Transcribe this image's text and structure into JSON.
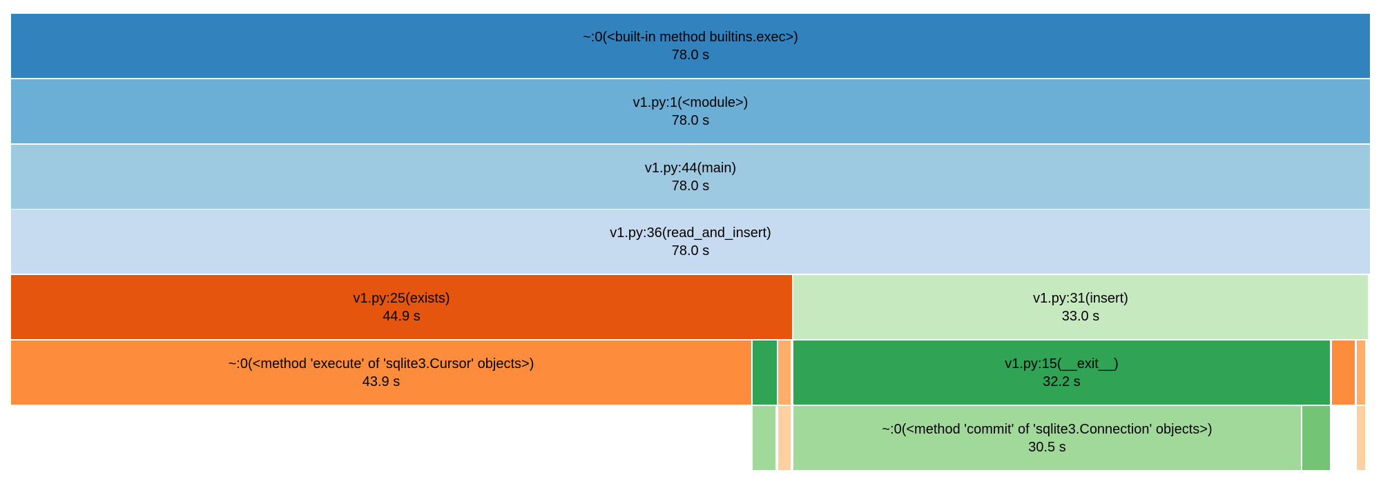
{
  "blocks": [
    {
      "name": "~:0(<built-in method builtins.exec>)",
      "time": "78.0 s",
      "color": "#3182bd"
    },
    {
      "name": "v1.py:1(<module>)",
      "time": "78.0 s",
      "color": "#6baed6"
    },
    {
      "name": "v1.py:44(main)",
      "time": "78.0 s",
      "color": "#9ecae1"
    },
    {
      "name": "v1.py:36(read_and_insert)",
      "time": "78.0 s",
      "color": "#c6dbef"
    },
    {
      "name": "v1.py:25(exists)",
      "time": "44.9 s",
      "color": "#e6550d"
    },
    {
      "name": "v1.py:31(insert)",
      "time": "33.0 s",
      "color": "#c7e9c0"
    },
    {
      "name": "~:0(<method 'execute' of 'sqlite3.Cursor' objects>)",
      "time": "43.9 s",
      "color": "#fd8d3c"
    },
    {
      "name": "",
      "time": "",
      "color": "#31a354"
    },
    {
      "name": "",
      "time": "",
      "color": "#fdae6b"
    },
    {
      "name": "v1.py:15(__exit__)",
      "time": "32.2 s",
      "color": "#31a354"
    },
    {
      "name": "",
      "time": "",
      "color": "#fd8d3c"
    },
    {
      "name": "",
      "time": "",
      "color": "#fdae6b"
    },
    {
      "name": "",
      "time": "",
      "color": "#a1d99b"
    },
    {
      "name": "",
      "time": "",
      "color": "#fdd0a2"
    },
    {
      "name": "~:0(<method 'commit' of 'sqlite3.Connection' objects>)",
      "time": "30.5 s",
      "color": "#a1d99b"
    },
    {
      "name": "",
      "time": "",
      "color": "#74c476"
    },
    {
      "name": "",
      "time": "",
      "color": "#fdd0a2"
    }
  ]
}
